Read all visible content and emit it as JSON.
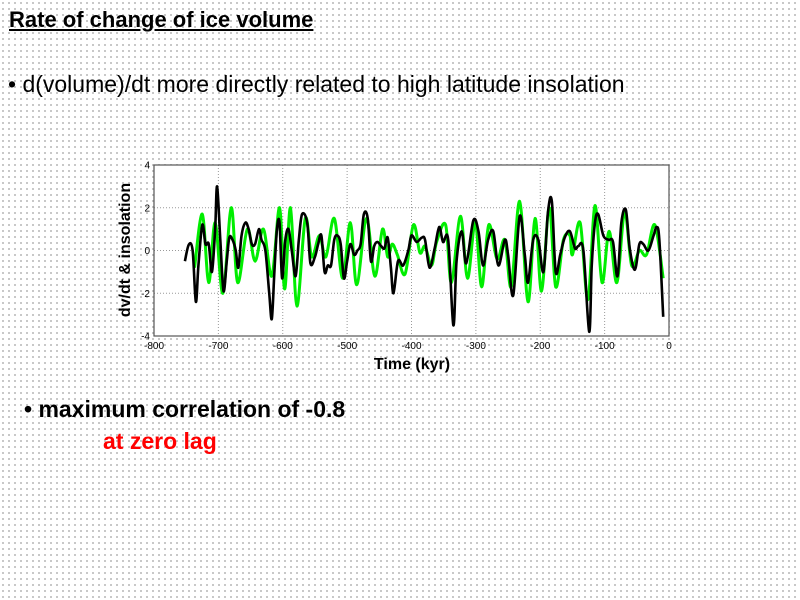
{
  "slide": {
    "title": "Rate of change of ice volume",
    "bullet1": "• d(volume)/dt more directly related to high latitude insolation",
    "bullet2": "• maximum correlation of -0.8",
    "bullet3": "at zero lag",
    "accent_color": "#ff0000"
  },
  "chart_data": {
    "type": "line",
    "title": "",
    "xlabel": "Time (kyr)",
    "ylabel": "dv/dt & insolation",
    "xlim": [
      -800,
      0
    ],
    "ylim": [
      -4,
      4
    ],
    "xticks": [
      "-800",
      "-700",
      "-600",
      "-500",
      "-400",
      "-300",
      "-200",
      "-100",
      "0"
    ],
    "yticks": [
      "-4",
      "-2",
      "0",
      "2",
      "4"
    ],
    "grid": true,
    "legend": "none",
    "series": [
      {
        "color": "#00ee00",
        "points": [
          [
            -737,
            -0.8
          ],
          [
            -725,
            1.7
          ],
          [
            -715,
            -1.5
          ],
          [
            -705,
            1.3
          ],
          [
            -693,
            -2.0
          ],
          [
            -680,
            2.0
          ],
          [
            -670,
            -1.5
          ],
          [
            -655,
            1.0
          ],
          [
            -643,
            -0.5
          ],
          [
            -630,
            1.0
          ],
          [
            -617,
            -1.2
          ],
          [
            -605,
            2.0
          ],
          [
            -597,
            -1.8
          ],
          [
            -588,
            2.0
          ],
          [
            -578,
            -2.6
          ],
          [
            -565,
            1.5
          ],
          [
            -555,
            -0.3
          ],
          [
            -543,
            0.7
          ],
          [
            -533,
            -0.3
          ],
          [
            -520,
            1.5
          ],
          [
            -507,
            -1.3
          ],
          [
            -495,
            1.3
          ],
          [
            -485,
            -1.6
          ],
          [
            -470,
            1.5
          ],
          [
            -457,
            -1.2
          ],
          [
            -445,
            1.0
          ],
          [
            -437,
            -0.3
          ],
          [
            -430,
            0.3
          ],
          [
            -422,
            -0.2
          ],
          [
            -410,
            -1.1
          ],
          [
            -397,
            1.2
          ],
          [
            -387,
            -0.1
          ],
          [
            -379,
            0.2
          ],
          [
            -369,
            -0.7
          ],
          [
            -361,
            0.4
          ],
          [
            -347,
            1.2
          ],
          [
            -338,
            -1.5
          ],
          [
            -324,
            1.6
          ],
          [
            -313,
            -1.3
          ],
          [
            -301,
            1.3
          ],
          [
            -291,
            -1.7
          ],
          [
            -280,
            1.2
          ],
          [
            -267,
            -0.4
          ],
          [
            -255,
            0.5
          ],
          [
            -245,
            -1.7
          ],
          [
            -232,
            2.3
          ],
          [
            -219,
            -2.4
          ],
          [
            -208,
            1.5
          ],
          [
            -198,
            -1.9
          ],
          [
            -186,
            2.0
          ],
          [
            -176,
            -1.7
          ],
          [
            -164,
            0.5
          ],
          [
            -154,
            0.7
          ],
          [
            -150,
            -0.2
          ],
          [
            -138,
            1.3
          ],
          [
            -126,
            -2.3
          ],
          [
            -115,
            2.1
          ],
          [
            -104,
            -1.5
          ],
          [
            -93,
            0.9
          ],
          [
            -81,
            -1.5
          ],
          [
            -69,
            1.8
          ],
          [
            -58,
            -0.7
          ],
          [
            -46,
            0.0
          ],
          [
            -35,
            -0.2
          ],
          [
            -22,
            1.2
          ],
          [
            -9,
            -1.3
          ]
        ]
      },
      {
        "color": "#000000",
        "points": [
          [
            -752,
            -0.5
          ],
          [
            -746,
            0.27
          ],
          [
            -740,
            0.0
          ],
          [
            -735,
            -2.4
          ],
          [
            -731,
            -0.7
          ],
          [
            -725,
            1.2
          ],
          [
            -720,
            0.3
          ],
          [
            -715,
            0.3
          ],
          [
            -710,
            -1.0
          ],
          [
            -705,
            1.0
          ],
          [
            -702,
            3.0
          ],
          [
            -697,
            0.5
          ],
          [
            -692,
            -1.9
          ],
          [
            -687,
            -0.5
          ],
          [
            -683,
            0.6
          ],
          [
            -678,
            0.5
          ],
          [
            -673,
            0.0
          ],
          [
            -669,
            -0.8
          ],
          [
            -664,
            0.7
          ],
          [
            -658,
            1.3
          ],
          [
            -653,
            1.0
          ],
          [
            -648,
            0.3
          ],
          [
            -643,
            0.3
          ],
          [
            -637,
            1.0
          ],
          [
            -633,
            0.5
          ],
          [
            -627,
            0.0
          ],
          [
            -621,
            -2.0
          ],
          [
            -617,
            -3.2
          ],
          [
            -613,
            -1.0
          ],
          [
            -609,
            1.0
          ],
          [
            -605,
            1.3
          ],
          [
            -601,
            -1.3
          ],
          [
            -596,
            0.5
          ],
          [
            -591,
            1.0
          ],
          [
            -586,
            0.0
          ],
          [
            -580,
            -1.2
          ],
          [
            -575,
            0.5
          ],
          [
            -570,
            1.7
          ],
          [
            -562,
            1.3
          ],
          [
            -557,
            -0.6
          ],
          [
            -550,
            -0.3
          ],
          [
            -545,
            0.3
          ],
          [
            -540,
            0.7
          ],
          [
            -535,
            -1.0
          ],
          [
            -530,
            -0.7
          ],
          [
            -525,
            -0.7
          ],
          [
            -520,
            0.5
          ],
          [
            -515,
            0.7
          ],
          [
            -510,
            0.3
          ],
          [
            -505,
            -1.3
          ],
          [
            -500,
            -0.5
          ],
          [
            -495,
            0.3
          ],
          [
            -489,
            -0.2
          ],
          [
            -484,
            0.0
          ],
          [
            -479,
            0.3
          ],
          [
            -474,
            1.7
          ],
          [
            -468,
            1.5
          ],
          [
            -463,
            -0.5
          ],
          [
            -458,
            0.2
          ],
          [
            -453,
            0.4
          ],
          [
            -447,
            0.2
          ],
          [
            -442,
            0.1
          ],
          [
            -437,
            0.6
          ],
          [
            -432,
            -0.8
          ],
          [
            -428,
            -2.0
          ],
          [
            -421,
            -0.5
          ],
          [
            -413,
            -0.7
          ],
          [
            -405,
            0.0
          ],
          [
            -400,
            0.7
          ],
          [
            -392,
            0.4
          ],
          [
            -384,
            0.6
          ],
          [
            -379,
            0.5
          ],
          [
            -372,
            -0.8
          ],
          [
            -364,
            0.1
          ],
          [
            -357,
            1.1
          ],
          [
            -351,
            0.4
          ],
          [
            -343,
            0.5
          ],
          [
            -335,
            -3.5
          ],
          [
            -330,
            -0.5
          ],
          [
            -322,
            0.9
          ],
          [
            -315,
            -0.6
          ],
          [
            -304,
            1.4
          ],
          [
            -296,
            0.9
          ],
          [
            -289,
            -0.7
          ],
          [
            -281,
            0.5
          ],
          [
            -273,
            0.9
          ],
          [
            -265,
            -0.7
          ],
          [
            -255,
            0.5
          ],
          [
            -250,
            -0.2
          ],
          [
            -242,
            -2.1
          ],
          [
            -232,
            1.6
          ],
          [
            -224,
            -0.2
          ],
          [
            -219,
            -1.5
          ],
          [
            -211,
            0.5
          ],
          [
            -203,
            0.5
          ],
          [
            -195,
            -1.0
          ],
          [
            -188,
            1.8
          ],
          [
            -182,
            2.3
          ],
          [
            -176,
            -1.0
          ],
          [
            -169,
            -0.2
          ],
          [
            -162,
            0.6
          ],
          [
            -154,
            0.9
          ],
          [
            -146,
            0.1
          ],
          [
            -141,
            0.2
          ],
          [
            -133,
            0.0
          ],
          [
            -124,
            -3.8
          ],
          [
            -120,
            -0.7
          ],
          [
            -115,
            1.3
          ],
          [
            -110,
            1.7
          ],
          [
            -102,
            0.7
          ],
          [
            -94,
            0.5
          ],
          [
            -87,
            0.4
          ],
          [
            -80,
            -1.2
          ],
          [
            -74,
            1.3
          ],
          [
            -67,
            1.9
          ],
          [
            -61,
            0.1
          ],
          [
            -53,
            -0.9
          ],
          [
            -46,
            0.3
          ],
          [
            -40,
            0.3
          ],
          [
            -32,
            0.0
          ],
          [
            -24,
            0.7
          ],
          [
            -19,
            1.1
          ],
          [
            -15,
            0.5
          ],
          [
            -9,
            -3.1
          ]
        ]
      }
    ]
  }
}
